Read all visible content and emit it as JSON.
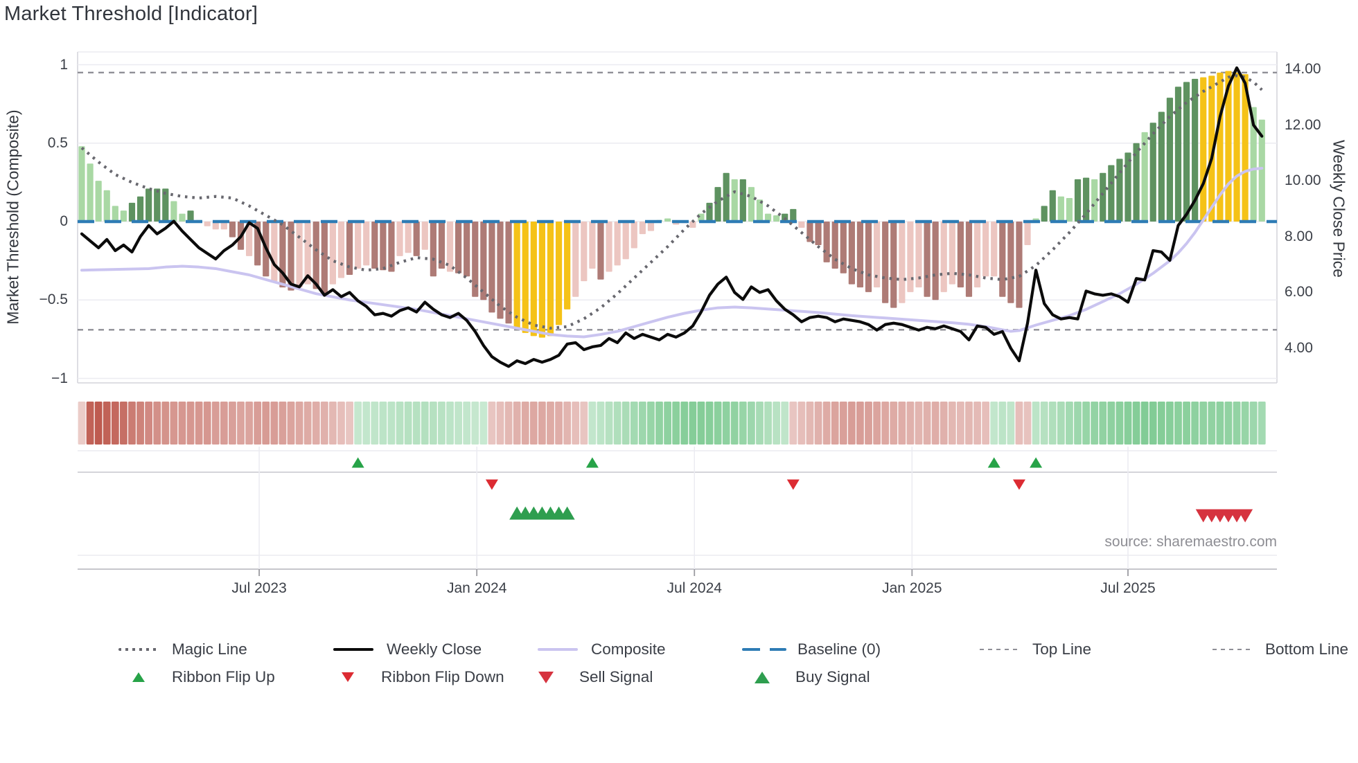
{
  "title": "Market Threshold [Indicator]",
  "source_note": "source: sharemaestro.com",
  "colors": {
    "bar_light_green": "#a9d8a4",
    "bar_dark_green": "#5e9260",
    "bar_yellow": "#f5c217",
    "bar_pink": "#ecc6c1",
    "bar_brown": "#ae7b76",
    "weekly_close_line": "#0b0b0b",
    "composite_line": "#cac4f0",
    "magic_line": "#68686f",
    "baseline": "#2e7cb5",
    "threshold_lines": "#8f8f96",
    "grid": "#ebebf1",
    "flip_up_marker": "#27a348",
    "flip_down_marker": "#dc2b32",
    "buy_marker": "#2e9e4f",
    "sell_marker": "#d6333f"
  },
  "legend": {
    "row1": [
      {
        "id": "magic-line",
        "label": "Magic Line"
      },
      {
        "id": "weekly-close",
        "label": "Weekly Close"
      },
      {
        "id": "composite",
        "label": "Composite"
      },
      {
        "id": "baseline",
        "label": "Baseline (0)"
      },
      {
        "id": "top-line",
        "label": "Top Line"
      },
      {
        "id": "bottom-line",
        "label": "Bottom Line"
      }
    ],
    "row2": [
      {
        "id": "ribbon-flip-up",
        "label": "Ribbon Flip Up"
      },
      {
        "id": "ribbon-flip-down",
        "label": "Ribbon Flip Down"
      },
      {
        "id": "sell-signal",
        "label": "Sell Signal"
      },
      {
        "id": "buy-signal",
        "label": "Buy Signal"
      }
    ]
  },
  "chart_data": {
    "type": "bar",
    "subtype": "weekly composite oscillator with price overlay, trend ribbon and signal markers",
    "weeks": 142,
    "x_axis": {
      "ticks": [
        {
          "label": "Jul 2023",
          "week": 21.2
        },
        {
          "label": "Jan 2024",
          "week": 47.2
        },
        {
          "label": "Jul 2024",
          "week": 73.2
        },
        {
          "label": "Jan 2025",
          "week": 99.2
        },
        {
          "label": "Jul 2025",
          "week": 125.0
        }
      ]
    },
    "left_axis": {
      "title": "Market Threshold (Composite)",
      "range": [
        -1.05,
        1.08
      ],
      "ticks": [
        {
          "v": 1,
          "label": "1"
        },
        {
          "v": 0.5,
          "label": "0.5"
        },
        {
          "v": 0,
          "label": "0"
        },
        {
          "v": -0.5,
          "label": "−0.5"
        },
        {
          "v": -1,
          "label": "−1"
        }
      ]
    },
    "right_axis": {
      "title": "Weekly Close Price",
      "range": [
        2.8,
        14.6
      ],
      "ticks": [
        {
          "p": 14,
          "label": "14.00"
        },
        {
          "p": 12,
          "label": "12.00"
        },
        {
          "p": 10,
          "label": "10.00"
        },
        {
          "p": 8,
          "label": "8.00"
        },
        {
          "p": 6,
          "label": "6.00"
        },
        {
          "p": 4,
          "label": "4.00"
        }
      ]
    },
    "hlines": {
      "top_line": 0.95,
      "baseline": 0,
      "bottom_line": -0.69
    },
    "bars": {
      "values": [
        0.48,
        0.37,
        0.26,
        0.2,
        0.1,
        0.07,
        0.12,
        0.16,
        0.21,
        0.21,
        0.21,
        0.13,
        0.05,
        0.07,
        0.01,
        -0.03,
        -0.05,
        -0.05,
        -0.1,
        -0.18,
        -0.22,
        -0.28,
        -0.35,
        -0.38,
        -0.42,
        -0.44,
        -0.42,
        -0.4,
        -0.43,
        -0.47,
        -0.4,
        -0.36,
        -0.34,
        -0.3,
        -0.28,
        -0.3,
        -0.31,
        -0.32,
        -0.22,
        -0.2,
        -0.22,
        -0.18,
        -0.35,
        -0.3,
        -0.32,
        -0.33,
        -0.35,
        -0.48,
        -0.5,
        -0.58,
        -0.62,
        -0.65,
        -0.68,
        -0.71,
        -0.73,
        -0.74,
        -0.73,
        -0.66,
        -0.56,
        -0.48,
        -0.38,
        -0.3,
        -0.37,
        -0.32,
        -0.28,
        -0.24,
        -0.17,
        -0.08,
        -0.06,
        0.01,
        0.02,
        -0.02,
        -0.01,
        -0.04,
        0.05,
        0.12,
        0.22,
        0.31,
        0.27,
        0.27,
        0.22,
        0.14,
        0.05,
        0.04,
        0.05,
        0.08,
        -0.04,
        -0.13,
        -0.15,
        -0.26,
        -0.3,
        -0.33,
        -0.4,
        -0.42,
        -0.45,
        -0.42,
        -0.52,
        -0.55,
        -0.52,
        -0.45,
        -0.42,
        -0.48,
        -0.5,
        -0.45,
        -0.4,
        -0.42,
        -0.48,
        -0.42,
        -0.35,
        -0.35,
        -0.48,
        -0.52,
        -0.55,
        -0.15,
        0.02,
        0.1,
        0.2,
        0.16,
        0.15,
        0.27,
        0.28,
        0.27,
        0.31,
        0.36,
        0.4,
        0.44,
        0.5,
        0.57,
        0.63,
        0.7,
        0.79,
        0.86,
        0.89,
        0.91,
        0.92,
        0.93,
        0.95,
        0.96,
        0.95,
        0.94,
        0.73,
        0.65
      ],
      "color_codes": [
        "lg",
        "lg",
        "lg",
        "lg",
        "lg",
        "lg",
        "dg",
        "dg",
        "dg",
        "dg",
        "dg",
        "lg",
        "lg",
        "dg",
        "lg",
        "pk",
        "pk",
        "pk",
        "br",
        "br",
        "pk",
        "br",
        "br",
        "pk",
        "br",
        "br",
        "pk",
        "pk",
        "br",
        "br",
        "pk",
        "pk",
        "br",
        "pk",
        "pk",
        "br",
        "br",
        "br",
        "pk",
        "pk",
        "br",
        "pk",
        "br",
        "br",
        "pk",
        "br",
        "br",
        "br",
        "br",
        "br",
        "br",
        "br",
        "y",
        "y",
        "y",
        "y",
        "y",
        "y",
        "y",
        "pk",
        "pk",
        "pk",
        "br",
        "pk",
        "pk",
        "pk",
        "pk",
        "pk",
        "pk",
        "lg",
        "lg",
        "pk",
        "pk",
        "pk",
        "lg",
        "dg",
        "dg",
        "dg",
        "lg",
        "dg",
        "lg",
        "lg",
        "lg",
        "lg",
        "dg",
        "dg",
        "pk",
        "br",
        "br",
        "br",
        "br",
        "br",
        "br",
        "br",
        "br",
        "pk",
        "br",
        "br",
        "pk",
        "pk",
        "pk",
        "br",
        "br",
        "pk",
        "pk",
        "br",
        "br",
        "pk",
        "pk",
        "pk",
        "br",
        "br",
        "br",
        "pk",
        "lg",
        "dg",
        "dg",
        "lg",
        "lg",
        "dg",
        "dg",
        "lg",
        "dg",
        "dg",
        "dg",
        "dg",
        "dg",
        "lg",
        "dg",
        "dg",
        "dg",
        "dg",
        "dg",
        "dg",
        "y",
        "y",
        "y",
        "y",
        "y",
        "y",
        "lg",
        "lg"
      ]
    },
    "series": [
      {
        "name": "Magic Line",
        "axis": "left",
        "style": "dotted-gray",
        "points": [
          [
            0,
            0.47
          ],
          [
            2,
            0.38
          ],
          [
            4,
            0.3
          ],
          [
            6,
            0.25
          ],
          [
            8,
            0.21
          ],
          [
            10,
            0.18
          ],
          [
            12,
            0.16
          ],
          [
            14,
            0.15
          ],
          [
            16,
            0.16
          ],
          [
            18,
            0.15
          ],
          [
            20,
            0.1
          ],
          [
            22,
            0.04
          ],
          [
            24,
            -0.02
          ],
          [
            26,
            -0.1
          ],
          [
            28,
            -0.18
          ],
          [
            30,
            -0.25
          ],
          [
            32,
            -0.29
          ],
          [
            34,
            -0.31
          ],
          [
            36,
            -0.3
          ],
          [
            38,
            -0.26
          ],
          [
            40,
            -0.23
          ],
          [
            42,
            -0.24
          ],
          [
            44,
            -0.28
          ],
          [
            46,
            -0.36
          ],
          [
            48,
            -0.45
          ],
          [
            50,
            -0.54
          ],
          [
            52,
            -0.61
          ],
          [
            54,
            -0.66
          ],
          [
            56,
            -0.68
          ],
          [
            58,
            -0.67
          ],
          [
            60,
            -0.62
          ],
          [
            62,
            -0.55
          ],
          [
            64,
            -0.46
          ],
          [
            66,
            -0.36
          ],
          [
            68,
            -0.26
          ],
          [
            70,
            -0.16
          ],
          [
            72,
            -0.05
          ],
          [
            74,
            0.05
          ],
          [
            76,
            0.13
          ],
          [
            78,
            0.19
          ],
          [
            80,
            0.16
          ],
          [
            82,
            0.1
          ],
          [
            84,
            0.02
          ],
          [
            86,
            -0.07
          ],
          [
            88,
            -0.16
          ],
          [
            90,
            -0.24
          ],
          [
            92,
            -0.3
          ],
          [
            94,
            -0.34
          ],
          [
            96,
            -0.36
          ],
          [
            98,
            -0.37
          ],
          [
            100,
            -0.36
          ],
          [
            102,
            -0.34
          ],
          [
            104,
            -0.33
          ],
          [
            106,
            -0.34
          ],
          [
            108,
            -0.36
          ],
          [
            110,
            -0.37
          ],
          [
            112,
            -0.35
          ],
          [
            114,
            -0.28
          ],
          [
            116,
            -0.18
          ],
          [
            118,
            -0.07
          ],
          [
            120,
            0.05
          ],
          [
            122,
            0.18
          ],
          [
            124,
            0.31
          ],
          [
            126,
            0.44
          ],
          [
            128,
            0.56
          ],
          [
            130,
            0.67
          ],
          [
            132,
            0.76
          ],
          [
            134,
            0.83
          ],
          [
            136,
            0.89
          ],
          [
            137,
            0.92
          ],
          [
            138,
            0.93
          ],
          [
            139,
            0.92
          ],
          [
            140,
            0.89
          ],
          [
            141,
            0.84
          ]
        ]
      },
      {
        "name": "Composite",
        "axis": "left",
        "style": "solid-lavender",
        "points": [
          [
            0,
            -0.31
          ],
          [
            4,
            -0.305
          ],
          [
            8,
            -0.3
          ],
          [
            10,
            -0.29
          ],
          [
            12,
            -0.285
          ],
          [
            14,
            -0.29
          ],
          [
            16,
            -0.3
          ],
          [
            18,
            -0.32
          ],
          [
            20,
            -0.34
          ],
          [
            24,
            -0.4
          ],
          [
            28,
            -0.46
          ],
          [
            32,
            -0.5
          ],
          [
            36,
            -0.53
          ],
          [
            40,
            -0.56
          ],
          [
            44,
            -0.6
          ],
          [
            48,
            -0.64
          ],
          [
            52,
            -0.68
          ],
          [
            54,
            -0.7
          ],
          [
            56,
            -0.72
          ],
          [
            58,
            -0.73
          ],
          [
            60,
            -0.735
          ],
          [
            62,
            -0.72
          ],
          [
            64,
            -0.7
          ],
          [
            66,
            -0.67
          ],
          [
            68,
            -0.64
          ],
          [
            70,
            -0.61
          ],
          [
            72,
            -0.585
          ],
          [
            74,
            -0.565
          ],
          [
            76,
            -0.55
          ],
          [
            78,
            -0.545
          ],
          [
            80,
            -0.55
          ],
          [
            84,
            -0.565
          ],
          [
            88,
            -0.58
          ],
          [
            92,
            -0.6
          ],
          [
            96,
            -0.615
          ],
          [
            100,
            -0.63
          ],
          [
            104,
            -0.645
          ],
          [
            106,
            -0.655
          ],
          [
            108,
            -0.67
          ],
          [
            110,
            -0.69
          ],
          [
            111,
            -0.7
          ],
          [
            112,
            -0.695
          ],
          [
            114,
            -0.66
          ],
          [
            116,
            -0.63
          ],
          [
            118,
            -0.6
          ],
          [
            120,
            -0.56
          ],
          [
            122,
            -0.51
          ],
          [
            124,
            -0.46
          ],
          [
            126,
            -0.4
          ],
          [
            128,
            -0.33
          ],
          [
            130,
            -0.25
          ],
          [
            131,
            -0.2
          ],
          [
            132,
            -0.14
          ],
          [
            133,
            -0.07
          ],
          [
            134,
            0.01
          ],
          [
            135,
            0.09
          ],
          [
            136,
            0.17
          ],
          [
            137,
            0.24
          ],
          [
            138,
            0.29
          ],
          [
            139,
            0.32
          ],
          [
            140,
            0.335
          ],
          [
            141,
            0.34
          ]
        ]
      },
      {
        "name": "Weekly Close",
        "axis": "right",
        "style": "solid-black",
        "values": [
          8.1,
          7.85,
          7.6,
          7.9,
          7.5,
          7.7,
          7.45,
          8.0,
          8.4,
          8.1,
          8.3,
          8.55,
          8.2,
          7.9,
          7.6,
          7.4,
          7.2,
          7.5,
          7.7,
          8.0,
          8.5,
          8.3,
          7.6,
          7.0,
          6.7,
          6.3,
          6.2,
          6.6,
          6.3,
          5.9,
          6.1,
          5.85,
          6.0,
          5.7,
          5.5,
          5.2,
          5.25,
          5.15,
          5.35,
          5.45,
          5.3,
          5.65,
          5.4,
          5.2,
          5.1,
          5.25,
          5.0,
          4.6,
          4.1,
          3.7,
          3.5,
          3.35,
          3.55,
          3.45,
          3.6,
          3.5,
          3.6,
          3.75,
          4.15,
          4.2,
          3.95,
          4.05,
          4.1,
          4.35,
          4.2,
          4.55,
          4.35,
          4.5,
          4.4,
          4.3,
          4.5,
          4.4,
          4.55,
          4.8,
          5.3,
          5.9,
          6.3,
          6.55,
          6.0,
          5.75,
          6.2,
          6.0,
          6.1,
          5.7,
          5.4,
          5.2,
          4.95,
          5.1,
          5.15,
          5.1,
          4.95,
          5.05,
          5.0,
          4.95,
          4.85,
          4.65,
          4.85,
          4.9,
          4.85,
          4.75,
          4.65,
          4.75,
          4.7,
          4.8,
          4.7,
          4.6,
          4.3,
          4.8,
          4.75,
          4.5,
          4.6,
          4.0,
          3.55,
          4.9,
          6.8,
          5.6,
          5.2,
          5.05,
          5.1,
          5.05,
          6.05,
          5.95,
          5.9,
          5.95,
          5.85,
          5.65,
          6.5,
          6.45,
          7.5,
          7.45,
          7.15,
          8.4,
          8.8,
          9.3,
          9.9,
          10.8,
          12.3,
          13.4,
          14.05,
          13.5,
          12.0,
          11.6
        ]
      }
    ],
    "ribbon": [
      -0.15,
      -0.95,
      -1.0,
      -0.95,
      -0.9,
      -0.85,
      -0.75,
      -0.7,
      -0.65,
      -0.6,
      -0.58,
      -0.55,
      -0.55,
      -0.55,
      -0.55,
      -0.55,
      -0.5,
      -0.5,
      -0.48,
      -0.45,
      -0.45,
      -0.5,
      -0.52,
      -0.5,
      -0.48,
      -0.45,
      -0.42,
      -0.4,
      -0.38,
      -0.35,
      -0.3,
      -0.25,
      -0.2,
      0.18,
      0.2,
      0.22,
      0.25,
      0.25,
      0.28,
      0.3,
      0.3,
      0.32,
      0.3,
      0.28,
      0.25,
      0.22,
      0.2,
      0.18,
      0.15,
      -0.2,
      -0.25,
      -0.3,
      -0.35,
      -0.4,
      -0.42,
      -0.42,
      -0.4,
      -0.38,
      -0.32,
      -0.25,
      -0.2,
      0.2,
      0.25,
      0.3,
      0.35,
      0.4,
      0.45,
      0.5,
      0.55,
      0.6,
      0.62,
      0.65,
      0.68,
      0.7,
      0.7,
      0.68,
      0.65,
      0.62,
      0.6,
      0.55,
      0.5,
      0.42,
      0.35,
      0.28,
      0.22,
      -0.2,
      -0.25,
      -0.3,
      -0.35,
      -0.4,
      -0.45,
      -0.48,
      -0.5,
      -0.5,
      -0.48,
      -0.45,
      -0.42,
      -0.4,
      -0.38,
      -0.35,
      -0.32,
      -0.35,
      -0.38,
      -0.35,
      -0.3,
      -0.28,
      -0.3,
      -0.28,
      -0.25,
      0.2,
      0.25,
      0.22,
      -0.25,
      -0.22,
      0.25,
      0.3,
      0.35,
      0.4,
      0.45,
      0.5,
      0.55,
      0.58,
      0.6,
      0.62,
      0.65,
      0.68,
      0.7,
      0.72,
      0.72,
      0.7,
      0.68,
      0.65,
      0.65,
      0.62,
      0.6,
      0.6,
      0.62,
      0.6,
      0.58,
      0.55,
      0.5,
      0.45
    ],
    "signals": {
      "ribbon_flip_up_weeks": [
        33,
        61,
        109,
        114
      ],
      "ribbon_flip_down_weeks": [
        49,
        85,
        112
      ],
      "buy_signal_weeks": [
        52,
        53,
        54,
        55,
        56,
        57,
        58
      ],
      "sell_signal_weeks": [
        134,
        135,
        136,
        137,
        138,
        139
      ]
    }
  }
}
